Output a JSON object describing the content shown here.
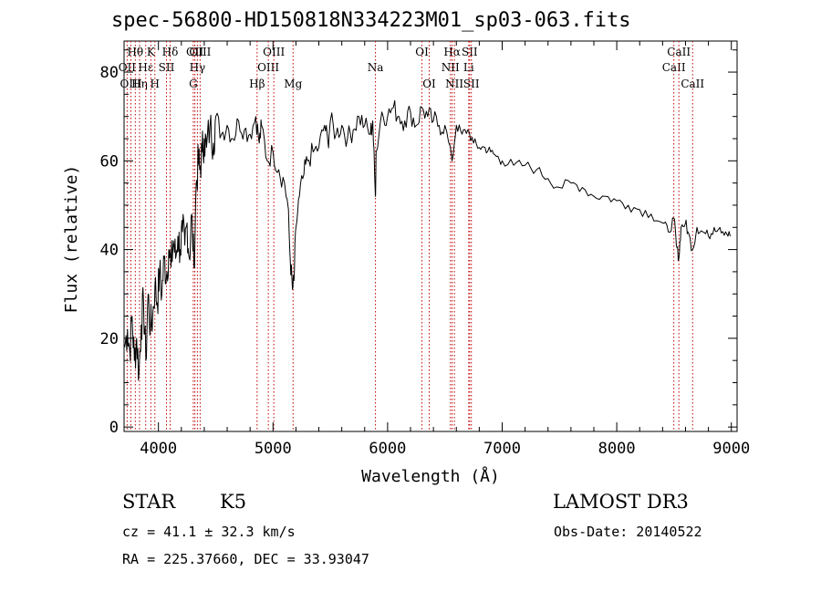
{
  "chart_data": {
    "type": "line",
    "title": "spec-56800-HD150818N334223M01_sp03-063.fits",
    "xlabel": "Wavelength (Å)",
    "ylabel": "Flux (relative)",
    "xlim": [
      3700,
      9050
    ],
    "ylim": [
      -1,
      87
    ],
    "xticks": [
      4000,
      5000,
      6000,
      7000,
      8000,
      9000
    ],
    "xticklabels": [
      "4000",
      "5000",
      "6000",
      "7000",
      "8000",
      "9000"
    ],
    "yticks": [
      0,
      20,
      40,
      60,
      80
    ],
    "yticklabels": [
      "0",
      "20",
      "40",
      "60",
      "80"
    ],
    "spectrum": {
      "x": [
        3705,
        3730,
        3750,
        3770,
        3790,
        3810,
        3830,
        3850,
        3870,
        3890,
        3910,
        3930,
        3950,
        3970,
        3990,
        4010,
        4030,
        4050,
        4070,
        4090,
        4110,
        4130,
        4150,
        4170,
        4190,
        4210,
        4230,
        4250,
        4270,
        4290,
        4310,
        4330,
        4350,
        4360,
        4380,
        4400,
        4420,
        4450,
        4480,
        4500,
        4550,
        4600,
        4650,
        4700,
        4750,
        4800,
        4850,
        4880,
        4900,
        4950,
        5000,
        5050,
        5100,
        5130,
        5150,
        5170,
        5183,
        5200,
        5230,
        5270,
        5300,
        5350,
        5400,
        5450,
        5480,
        5500,
        5550,
        5600,
        5650,
        5700,
        5750,
        5800,
        5850,
        5870,
        5893,
        5900,
        5950,
        6000,
        6050,
        6100,
        6150,
        6200,
        6250,
        6300,
        6350,
        6400,
        6450,
        6500,
        6563,
        6600,
        6650,
        6700,
        6750,
        6800,
        6850,
        6900,
        6950,
        7000,
        7100,
        7200,
        7300,
        7400,
        7500,
        7600,
        7700,
        7800,
        7900,
        8000,
        8100,
        8200,
        8300,
        8400,
        8450,
        8500,
        8520,
        8542,
        8560,
        8600,
        8620,
        8662,
        8700,
        8750,
        8800,
        8850,
        8900,
        8950,
        8990
      ],
      "y": [
        18,
        22,
        17,
        25,
        15,
        20,
        12,
        23,
        28,
        15,
        30,
        22,
        25,
        32,
        28,
        35,
        30,
        38,
        34,
        40,
        36,
        42,
        38,
        43,
        40,
        44,
        41,
        46,
        38,
        48,
        36,
        55,
        60,
        58,
        62,
        65,
        63,
        68,
        64,
        70,
        66,
        68,
        65,
        69,
        67,
        66,
        70,
        64,
        68,
        60,
        62,
        58,
        55,
        50,
        38,
        31,
        33,
        45,
        52,
        57,
        60,
        62,
        63,
        68,
        64,
        69,
        66,
        68,
        65,
        67,
        70,
        68,
        66,
        69,
        52,
        62,
        71,
        70,
        72,
        70,
        69,
        71,
        68,
        72,
        70,
        69,
        68,
        68,
        60,
        68,
        66,
        67,
        64,
        63,
        63,
        62,
        61,
        60,
        59,
        59,
        58,
        56,
        54,
        55,
        54,
        52,
        52,
        51,
        50,
        49,
        48,
        46,
        44,
        47,
        41,
        38,
        45,
        46,
        44,
        40,
        45,
        44,
        43,
        45,
        45,
        44,
        43
      ],
      "points": 127
    },
    "line_markers": [
      {
        "label": "Hθ",
        "x": 3798,
        "row": 1
      },
      {
        "label": "OII",
        "x": 3727,
        "row": 2
      },
      {
        "label": "OIII",
        "x": 3760,
        "row": 3
      },
      {
        "label": "Hη",
        "x": 3835,
        "row": 3
      },
      {
        "label": "Hε",
        "x": 3889,
        "row": 2
      },
      {
        "label": "K",
        "x": 3934,
        "row": 1
      },
      {
        "label": "H",
        "x": 3969,
        "row": 3
      },
      {
        "label": "SII",
        "x": 4070,
        "row": 2
      },
      {
        "label": "Hδ",
        "x": 4102,
        "row": 1
      },
      {
        "label": "OII",
        "x": 4318,
        "row": 1
      },
      {
        "label": "Hγ",
        "x": 4340,
        "row": 2
      },
      {
        "label": "G",
        "x": 4304,
        "row": 3
      },
      {
        "label": "OIII",
        "x": 4364,
        "row": 1
      },
      {
        "label": "Hβ",
        "x": 4861,
        "row": 3
      },
      {
        "label": "OIII",
        "x": 4959,
        "row": 2
      },
      {
        "label": "OIII",
        "x": 5007,
        "row": 1
      },
      {
        "label": "Mg",
        "x": 5175,
        "row": 3
      },
      {
        "label": "Na",
        "x": 5894,
        "row": 2
      },
      {
        "label": "OI",
        "x": 6300,
        "row": 1
      },
      {
        "label": "OI",
        "x": 6363,
        "row": 3
      },
      {
        "label": "Hα",
        "x": 6563,
        "row": 1
      },
      {
        "label": "NII",
        "x": 6548,
        "row": 2
      },
      {
        "label": "NII",
        "x": 6583,
        "row": 3
      },
      {
        "label": "SII",
        "x": 6716,
        "row": 1
      },
      {
        "label": "Li",
        "x": 6708,
        "row": 2
      },
      {
        "label": "SII",
        "x": 6731,
        "row": 3
      },
      {
        "label": "CaII",
        "x": 8498,
        "row": 2
      },
      {
        "label": "CaII",
        "x": 8542,
        "row": 1
      },
      {
        "label": "CaII",
        "x": 8662,
        "row": 3
      }
    ],
    "colors": {
      "spectrum": "#000000",
      "markers": "#c00000",
      "axes": "#000000"
    }
  },
  "info": {
    "class_label": "STAR",
    "subclass": "K5",
    "survey": "LAMOST DR3",
    "redshift_line": "cz = 41.1 ± 32.3 km/s",
    "obs_date_line": "Obs-Date: 20140522",
    "coords_line": "RA = 225.37660, DEC =  33.93047"
  }
}
